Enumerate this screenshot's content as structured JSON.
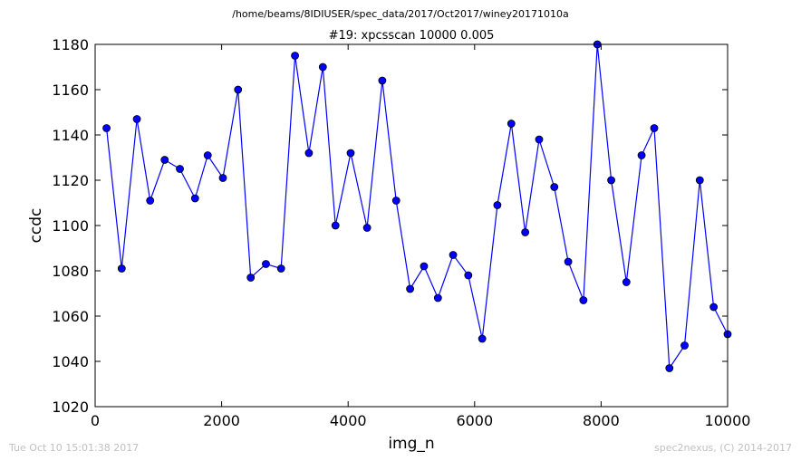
{
  "header": {
    "path": "/home/beams/8IDIUSER/spec_data/2017/Oct2017/winey20171010a"
  },
  "footer": {
    "timestamp": "Tue Oct 10 15:01:38 2017",
    "credit": "spec2nexus, (C) 2014-2017"
  },
  "chart_data": {
    "type": "line",
    "title": "#19: xpcsscan 10000 0.005",
    "xlabel": "img_n",
    "ylabel": "ccdc",
    "xlim": [
      0,
      10000
    ],
    "ylim": [
      1020,
      1180
    ],
    "xticks": [
      0,
      2000,
      4000,
      6000,
      8000,
      10000
    ],
    "yticks": [
      1020,
      1040,
      1060,
      1080,
      1100,
      1120,
      1140,
      1160,
      1180
    ],
    "grid": false,
    "legend": "none",
    "color": "#0000ff",
    "marker": "circle",
    "series": [
      {
        "x": [
          180,
          420,
          660,
          870,
          1100,
          1340,
          1580,
          1780,
          2020,
          2260,
          2460,
          2700,
          2940,
          3160,
          3380,
          3600,
          3800,
          4040,
          4300,
          4540,
          4760,
          4980,
          5200,
          5420,
          5660,
          5900,
          6120,
          6360,
          6580,
          6800,
          7020,
          7260,
          7480,
          7720,
          7940,
          8160,
          8400,
          8640,
          8840,
          9080,
          9320,
          9560,
          9780,
          10000
        ],
        "values": [
          1143,
          1081,
          1147,
          1111,
          1129,
          1125,
          1112,
          1131,
          1121,
          1160,
          1077,
          1083,
          1081,
          1175,
          1132,
          1170,
          1100,
          1132,
          1099,
          1164,
          1111,
          1072,
          1082,
          1068,
          1087,
          1078,
          1050,
          1109,
          1145,
          1097,
          1138,
          1117,
          1084,
          1067,
          1180,
          1120,
          1075,
          1131,
          1143,
          1037,
          1047,
          1120,
          1064,
          1052
        ]
      }
    ]
  }
}
